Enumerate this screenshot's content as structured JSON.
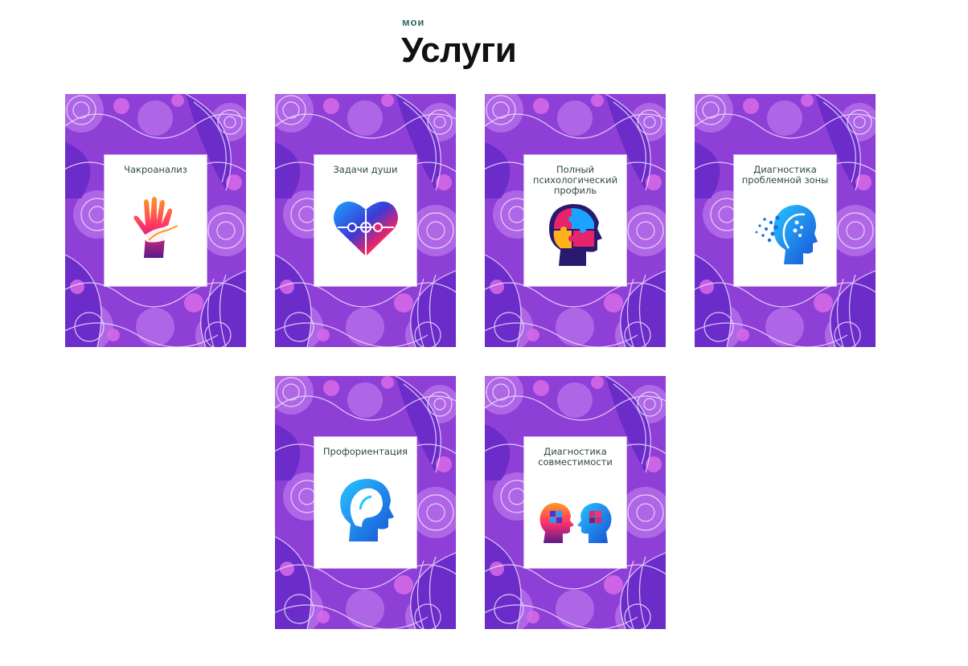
{
  "header": {
    "eyebrow": "мои",
    "title": "Услуги"
  },
  "colors": {
    "card_background": "#8e3fd6",
    "pattern_light": "#e9d6ff",
    "accent_pink": "#e064e8",
    "title_teal": "#2f6b63"
  },
  "services": [
    {
      "title": "Чакроанализ",
      "icon": "hands-icon"
    },
    {
      "title": "Задачи души",
      "icon": "puzzle-heart-icon"
    },
    {
      "title": "Полный психологический профиль",
      "icon": "puzzle-head-icon"
    },
    {
      "title": "Диагностика проблемной зоны",
      "icon": "head-dots-icon"
    },
    {
      "title": "Профориентация",
      "icon": "head-profile-icon"
    },
    {
      "title": "Диагностика совместимости",
      "icon": "two-heads-icon"
    }
  ]
}
